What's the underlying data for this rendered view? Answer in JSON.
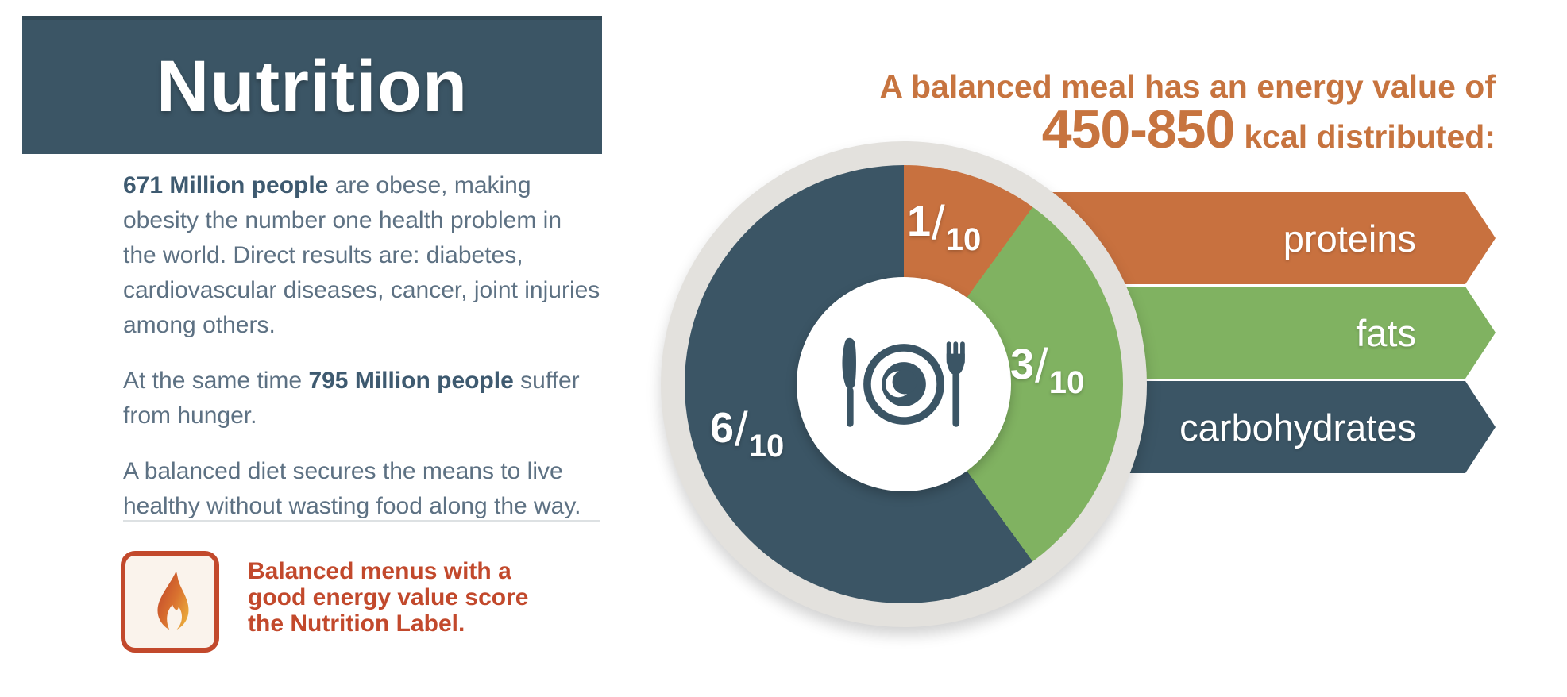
{
  "colors": {
    "teal": "#3b5565",
    "orange": "#c8713f",
    "green": "#80b261",
    "ring_gray": "#e3e1dd",
    "heading_orange": "#c7743f",
    "flame_red": "#c2492c",
    "flame_bg": "#faf3ec",
    "flame_grad_start": "#c0452b",
    "flame_grad_mid": "#d9712f",
    "flame_grad_end": "#eeb63e",
    "body_text": "#5d7183",
    "body_bold": "#3e5a70",
    "divider": "#dde1e3",
    "text_white": "#ffffff"
  },
  "header": {
    "title": "Nutrition"
  },
  "intro": {
    "p1_lines": [
      [
        {
          "b": "671 Million people"
        },
        " are obese, making"
      ],
      [
        "obesity the number one health problem in"
      ],
      [
        "the world. Direct results are: diabetes,"
      ],
      [
        "cardiovascular diseases, cancer, joint injuries"
      ],
      [
        "among others."
      ]
    ],
    "p2_lines": [
      [
        "At the same time ",
        {
          "b": "795 Million people"
        },
        " suffer"
      ],
      [
        "from hunger."
      ]
    ],
    "p3_lines": [
      [
        "A balanced diet secures the means to live"
      ],
      [
        "healthy without wasting food along the way."
      ]
    ]
  },
  "note": {
    "lines": [
      "Balanced menus with a",
      "good energy value score",
      "the Nutrition Label."
    ]
  },
  "chart_heading": {
    "line1": "A balanced meal has an energy value of",
    "range": "450-850",
    "line2_rest": "kcal distributed:"
  },
  "chart_data": {
    "type": "pie",
    "subtype": "donut",
    "title": "A balanced meal has an energy value of 450-850 kcal distributed:",
    "kcal_range": [
      450,
      850
    ],
    "categories": [
      "proteins",
      "fats",
      "carbohydrates"
    ],
    "values": [
      1,
      3,
      6
    ],
    "denominator": 10,
    "labels": [
      "1/10",
      "3/10",
      "6/10"
    ],
    "colors": [
      "#c8713f",
      "#80b261",
      "#3b5565"
    ],
    "start_angle_deg": 0,
    "direction": "clockwise",
    "center_icon": "plate-with-cutlery",
    "segments": [
      {
        "name": "proteins",
        "num": "1",
        "sep": "/",
        "den": "10"
      },
      {
        "name": "fats",
        "num": "3",
        "sep": "/",
        "den": "10"
      },
      {
        "name": "carbohydrates",
        "num": "6",
        "sep": "/",
        "den": "10"
      }
    ]
  },
  "banners": [
    {
      "label": "proteins",
      "color": "#c8713f"
    },
    {
      "label": "fats",
      "color": "#80b261"
    },
    {
      "label": "carbohydrates",
      "color": "#3b5565"
    }
  ]
}
